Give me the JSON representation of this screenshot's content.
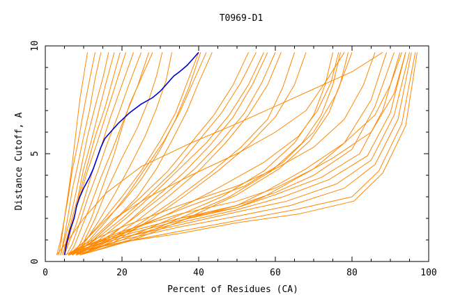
{
  "chart_data": {
    "type": "line",
    "title": "T0969-D1",
    "xlabel": "Percent of Residues (CA)",
    "ylabel": "Distance Cutoff, A",
    "xlim": [
      0,
      100
    ],
    "ylim": [
      0,
      10
    ],
    "xticks": [
      0,
      20,
      40,
      60,
      80,
      100
    ],
    "yticks": [
      0,
      5,
      10
    ],
    "colors": {
      "highlight": "#0000cc",
      "others": "#ff8800"
    },
    "highlight": {
      "x": [
        5.0,
        5.5,
        6.5,
        7.5,
        8.2,
        9.0,
        10.0,
        11.5,
        12.5,
        13.5,
        14.5,
        15.5,
        17.0,
        19.0,
        22.0,
        25.0,
        28.0,
        30.0,
        32.0,
        33.5,
        35.0,
        37.0,
        38.5,
        40.0
      ],
      "y": [
        0.3,
        0.8,
        1.5,
        2.0,
        2.6,
        3.0,
        3.4,
        3.9,
        4.3,
        4.8,
        5.3,
        5.7,
        6.0,
        6.4,
        6.9,
        7.3,
        7.6,
        7.9,
        8.3,
        8.6,
        8.8,
        9.1,
        9.4,
        9.7
      ]
    },
    "series": [
      {
        "x": [
          3.0,
          4.0,
          5.0,
          6.0,
          7.0,
          8.0,
          9.0,
          10.0,
          11.0
        ],
        "y": [
          0.3,
          1.0,
          2.0,
          3.2,
          4.5,
          6.0,
          7.5,
          8.6,
          9.7
        ]
      },
      {
        "x": [
          3.5,
          4.2,
          5.0,
          6.0,
          7.0,
          8.5,
          10.0,
          11.5,
          13.0
        ],
        "y": [
          0.3,
          1.0,
          2.0,
          3.0,
          4.2,
          5.5,
          7.0,
          8.4,
          9.7
        ]
      },
      {
        "x": [
          4.0,
          5.0,
          6.0,
          7.0,
          8.5,
          10.0,
          11.5,
          13.0,
          14.5
        ],
        "y": [
          0.3,
          1.2,
          2.2,
          3.3,
          4.5,
          5.8,
          7.0,
          8.5,
          9.7
        ]
      },
      {
        "x": [
          4.0,
          5.0,
          6.5,
          8.0,
          9.5,
          11.0,
          13.0,
          15.0,
          16.5
        ],
        "y": [
          0.3,
          1.0,
          2.0,
          3.2,
          4.5,
          5.8,
          7.2,
          8.5,
          9.7
        ]
      },
      {
        "x": [
          4.5,
          5.5,
          7.0,
          8.5,
          10.0,
          12.0,
          14.0,
          16.0,
          18.0
        ],
        "y": [
          0.3,
          1.0,
          2.0,
          3.0,
          4.3,
          5.6,
          7.0,
          8.4,
          9.7
        ]
      },
      {
        "x": [
          5.0,
          6.0,
          7.5,
          9.0,
          11.0,
          13.0,
          15.5,
          17.5,
          19.5
        ],
        "y": [
          0.3,
          1.0,
          2.0,
          3.2,
          4.5,
          5.8,
          7.1,
          8.4,
          9.7
        ]
      },
      {
        "x": [
          4.5,
          5.5,
          7.0,
          9.0,
          11.0,
          13.5,
          16.0,
          18.5,
          21.0
        ],
        "y": [
          0.3,
          0.9,
          1.8,
          3.0,
          4.2,
          5.5,
          6.9,
          8.3,
          9.7
        ]
      },
      {
        "x": [
          5.0,
          6.0,
          8.0,
          10.0,
          12.0,
          14.5,
          17.0,
          20.0,
          23.0
        ],
        "y": [
          0.3,
          0.8,
          1.7,
          2.8,
          4.0,
          5.3,
          6.7,
          8.2,
          9.7
        ]
      },
      {
        "x": [
          5.5,
          7.0,
          9.0,
          11.0,
          13.5,
          16.0,
          19.0,
          22.0,
          25.0
        ],
        "y": [
          0.3,
          0.8,
          1.8,
          2.9,
          4.1,
          5.4,
          6.8,
          8.3,
          9.7
        ]
      },
      {
        "x": [
          6.0,
          7.5,
          9.5,
          12.0,
          14.5,
          17.5,
          20.5,
          24.0,
          27.0
        ],
        "y": [
          0.3,
          0.7,
          1.6,
          2.7,
          3.9,
          5.2,
          6.6,
          8.1,
          9.7
        ]
      },
      {
        "x": [
          7.0,
          9.0,
          12.0,
          15.0,
          18.0,
          20.0,
          22.0,
          25.0,
          28.0
        ],
        "y": [
          0.3,
          0.8,
          2.0,
          3.5,
          5.0,
          6.2,
          7.3,
          8.5,
          9.7
        ]
      },
      {
        "x": [
          8.0,
          10.0,
          13.0,
          16.0,
          20.0,
          24.0,
          27.0,
          29.0,
          30.5
        ],
        "y": [
          0.3,
          0.9,
          2.0,
          3.3,
          4.8,
          6.2,
          7.5,
          8.6,
          9.7
        ]
      },
      {
        "x": [
          7.0,
          10.0,
          14.0,
          18.0,
          22.0,
          26.0,
          29.0,
          31.5,
          33.0
        ],
        "y": [
          0.3,
          0.8,
          1.9,
          3.1,
          4.4,
          5.8,
          7.1,
          8.4,
          9.7
        ]
      },
      {
        "x": [
          6.0,
          10.0,
          15.0,
          20.0,
          25.0,
          30.0,
          34.0,
          37.0,
          40.0
        ],
        "y": [
          0.3,
          0.9,
          1.9,
          3.0,
          4.2,
          5.6,
          6.9,
          8.3,
          9.7
        ]
      },
      {
        "x": [
          6.0,
          10.0,
          15.0,
          20.0,
          25.0,
          30.0,
          34.0,
          37.5,
          40.5
        ],
        "y": [
          0.3,
          0.9,
          1.8,
          2.7,
          3.8,
          5.2,
          6.6,
          8.1,
          9.7
        ]
      },
      {
        "x": [
          7.0,
          11.0,
          16.0,
          21.0,
          26.0,
          31.0,
          35.0,
          38.5,
          42.0
        ],
        "y": [
          0.3,
          0.9,
          1.9,
          3.0,
          4.3,
          5.6,
          6.9,
          8.3,
          9.7
        ]
      },
      {
        "x": [
          7.0,
          12.0,
          18.0,
          24.0,
          29.0,
          33.0,
          37.0,
          40.0,
          43.5
        ],
        "y": [
          0.3,
          0.9,
          1.9,
          3.0,
          4.3,
          5.6,
          7.0,
          8.3,
          9.7
        ]
      },
      {
        "x": [
          7.0,
          12.0,
          18.0,
          25.0,
          32.0,
          38.0,
          44.0,
          49.0,
          53.0
        ],
        "y": [
          0.3,
          0.9,
          1.9,
          3.0,
          4.2,
          5.5,
          6.8,
          8.2,
          9.7
        ]
      },
      {
        "x": [
          7.0,
          13.0,
          20.0,
          27.0,
          34.0,
          40.0,
          46.0,
          51.0,
          55.0
        ],
        "y": [
          0.3,
          1.0,
          2.0,
          3.1,
          4.3,
          5.6,
          6.9,
          8.3,
          9.7
        ]
      },
      {
        "x": [
          8.0,
          14.0,
          21.0,
          28.0,
          35.0,
          42.0,
          48.0,
          53.0,
          57.0
        ],
        "y": [
          0.3,
          1.0,
          2.0,
          3.1,
          4.3,
          5.5,
          6.8,
          8.2,
          9.7
        ]
      },
      {
        "x": [
          8.0,
          15.0,
          22.0,
          29.0,
          36.0,
          43.0,
          49.0,
          54.0,
          58.0
        ],
        "y": [
          0.3,
          0.9,
          1.9,
          3.0,
          4.1,
          5.4,
          6.7,
          8.2,
          9.7
        ]
      },
      {
        "x": [
          8.0,
          15.0,
          23.0,
          31.0,
          39.0,
          46.0,
          52.0,
          56.5,
          60.0
        ],
        "y": [
          0.3,
          1.0,
          2.0,
          3.1,
          4.3,
          5.6,
          6.9,
          8.3,
          9.7
        ]
      },
      {
        "x": [
          9.0,
          16.0,
          24.0,
          32.0,
          40.0,
          47.0,
          53.0,
          58.0,
          61.5
        ],
        "y": [
          0.3,
          0.9,
          1.9,
          3.0,
          4.2,
          5.5,
          6.8,
          8.2,
          9.7
        ]
      },
      {
        "x": [
          9.0,
          17.0,
          25.0,
          34.0,
          43.0,
          51.0,
          58.0,
          62.0,
          65.0
        ],
        "y": [
          0.3,
          0.9,
          1.8,
          2.9,
          4.1,
          5.3,
          6.6,
          8.1,
          9.7
        ]
      },
      {
        "x": [
          9.0,
          18.0,
          27.0,
          36.0,
          45.0,
          53.0,
          60.0,
          65.0,
          68.0
        ],
        "y": [
          0.3,
          0.9,
          1.9,
          3.0,
          4.2,
          5.4,
          6.7,
          8.2,
          9.7
        ]
      },
      {
        "x": [
          8.0,
          20.0,
          33.0,
          46.0,
          57.0,
          65.0,
          70.0,
          73.0,
          75.0
        ],
        "y": [
          0.3,
          1.0,
          2.0,
          3.0,
          4.2,
          5.5,
          6.8,
          8.2,
          9.7
        ]
      },
      {
        "x": [
          9.0,
          22.0,
          35.0,
          48.0,
          59.0,
          67.0,
          72.0,
          75.0,
          77.0
        ],
        "y": [
          0.3,
          1.0,
          2.0,
          3.0,
          4.2,
          5.5,
          6.8,
          8.2,
          9.7
        ]
      },
      {
        "x": [
          9.0,
          23.0,
          37.0,
          50.0,
          61.0,
          69.0,
          74.0,
          77.0,
          79.0
        ],
        "y": [
          0.3,
          1.0,
          2.0,
          3.1,
          4.3,
          5.6,
          6.9,
          8.3,
          9.7
        ]
      },
      {
        "x": [
          8.0,
          18.0,
          32.0,
          45.0,
          57.0,
          66.0,
          71.0,
          74.5,
          76.5
        ],
        "y": [
          0.3,
          1.1,
          2.2,
          3.4,
          4.6,
          5.8,
          7.0,
          8.3,
          9.7
        ]
      },
      {
        "x": [
          8.0,
          12.0,
          18.0,
          27.0,
          38.0,
          50.0,
          60.0,
          68.0,
          73.0,
          78.0
        ],
        "y": [
          0.3,
          1.0,
          2.0,
          3.0,
          4.0,
          5.0,
          6.0,
          7.0,
          8.3,
          9.7
        ]
      },
      {
        "x": [
          7.0,
          14.0,
          25.0,
          38.0,
          52.0,
          62.0,
          70.0,
          76.0,
          80.0
        ],
        "y": [
          0.3,
          0.9,
          1.7,
          2.6,
          3.5,
          4.6,
          6.0,
          7.8,
          9.7
        ]
      },
      {
        "x": [
          6.0,
          10.0,
          20.0,
          35.0,
          50.0,
          60.0,
          70.0,
          78.0,
          83.0,
          86.0
        ],
        "y": [
          0.3,
          0.8,
          1.6,
          2.6,
          3.5,
          4.3,
          5.3,
          6.6,
          8.2,
          9.7
        ]
      },
      {
        "x": [
          6.0,
          10.0,
          20.0,
          35.0,
          50.0,
          60.0,
          70.0,
          78.0,
          85.0,
          89.0
        ],
        "y": [
          0.3,
          0.7,
          1.4,
          2.2,
          2.8,
          3.4,
          4.3,
          5.5,
          7.5,
          9.7
        ]
      },
      {
        "x": [
          6.0,
          10.0,
          20.0,
          35.0,
          50.0,
          60.0,
          70.0,
          80.0,
          86.0,
          91.0
        ],
        "y": [
          0.3,
          0.7,
          1.3,
          2.0,
          2.6,
          3.2,
          4.0,
          5.2,
          7.2,
          9.7
        ]
      },
      {
        "x": [
          6.0,
          10.0,
          20.0,
          35.0,
          50.0,
          60.0,
          72.0,
          82.0,
          88.0,
          92.5
        ],
        "y": [
          0.3,
          0.6,
          1.2,
          1.9,
          2.5,
          3.1,
          3.9,
          5.0,
          7.0,
          9.7
        ]
      },
      {
        "x": [
          6.0,
          10.0,
          20.0,
          35.0,
          50.0,
          62.0,
          74.0,
          84.0,
          90.0,
          94.0
        ],
        "y": [
          0.3,
          0.6,
          1.1,
          1.8,
          2.4,
          3.0,
          3.8,
          4.9,
          6.9,
          9.7
        ]
      },
      {
        "x": [
          6.0,
          10.0,
          20.0,
          35.0,
          50.0,
          63.0,
          76.0,
          85.0,
          91.0,
          95.0
        ],
        "y": [
          0.3,
          0.6,
          1.1,
          1.7,
          2.3,
          2.8,
          3.6,
          4.7,
          6.8,
          9.7
        ]
      },
      {
        "x": [
          6.0,
          10.0,
          20.0,
          35.0,
          50.0,
          64.0,
          78.0,
          86.0,
          92.0,
          95.5
        ],
        "y": [
          0.3,
          0.5,
          1.0,
          1.6,
          2.1,
          2.6,
          3.4,
          4.5,
          6.6,
          9.7
        ]
      },
      {
        "x": [
          6.0,
          10.0,
          20.0,
          35.0,
          50.0,
          65.0,
          80.0,
          87.0,
          93.0,
          96.5
        ],
        "y": [
          0.3,
          0.5,
          0.9,
          1.4,
          1.9,
          2.4,
          3.0,
          4.2,
          6.4,
          9.7
        ]
      },
      {
        "x": [
          6.0,
          10.0,
          20.0,
          35.0,
          50.0,
          66.0,
          80.5,
          88.0,
          94.0,
          97.0
        ],
        "y": [
          0.3,
          0.5,
          0.9,
          1.3,
          1.8,
          2.2,
          2.8,
          4.1,
          6.3,
          9.7
        ]
      },
      {
        "x": [
          5.0,
          10.0,
          20.0,
          35.0,
          50.0,
          57.0,
          65.0,
          75.0,
          85.0,
          91.0,
          94.0
        ],
        "y": [
          0.3,
          0.7,
          1.3,
          2.0,
          2.5,
          3.0,
          3.8,
          4.8,
          6.0,
          7.8,
          9.7
        ]
      },
      {
        "x": [
          6.0,
          10.0,
          20.0,
          35.0,
          50.0,
          58.0,
          68.0,
          78.0,
          86.0,
          90.0,
          93.0
        ],
        "y": [
          0.3,
          0.7,
          1.2,
          1.9,
          2.6,
          3.3,
          4.3,
          5.5,
          6.8,
          8.2,
          9.7
        ]
      },
      {
        "x": [
          3.0,
          6.0,
          10.0,
          16.0,
          25.0,
          38.0,
          50.0,
          60.0,
          70.0,
          80.0,
          88.0
        ],
        "y": [
          0.3,
          1.0,
          2.0,
          3.2,
          4.4,
          5.5,
          6.4,
          7.2,
          8.0,
          8.8,
          9.7
        ]
      }
    ]
  }
}
